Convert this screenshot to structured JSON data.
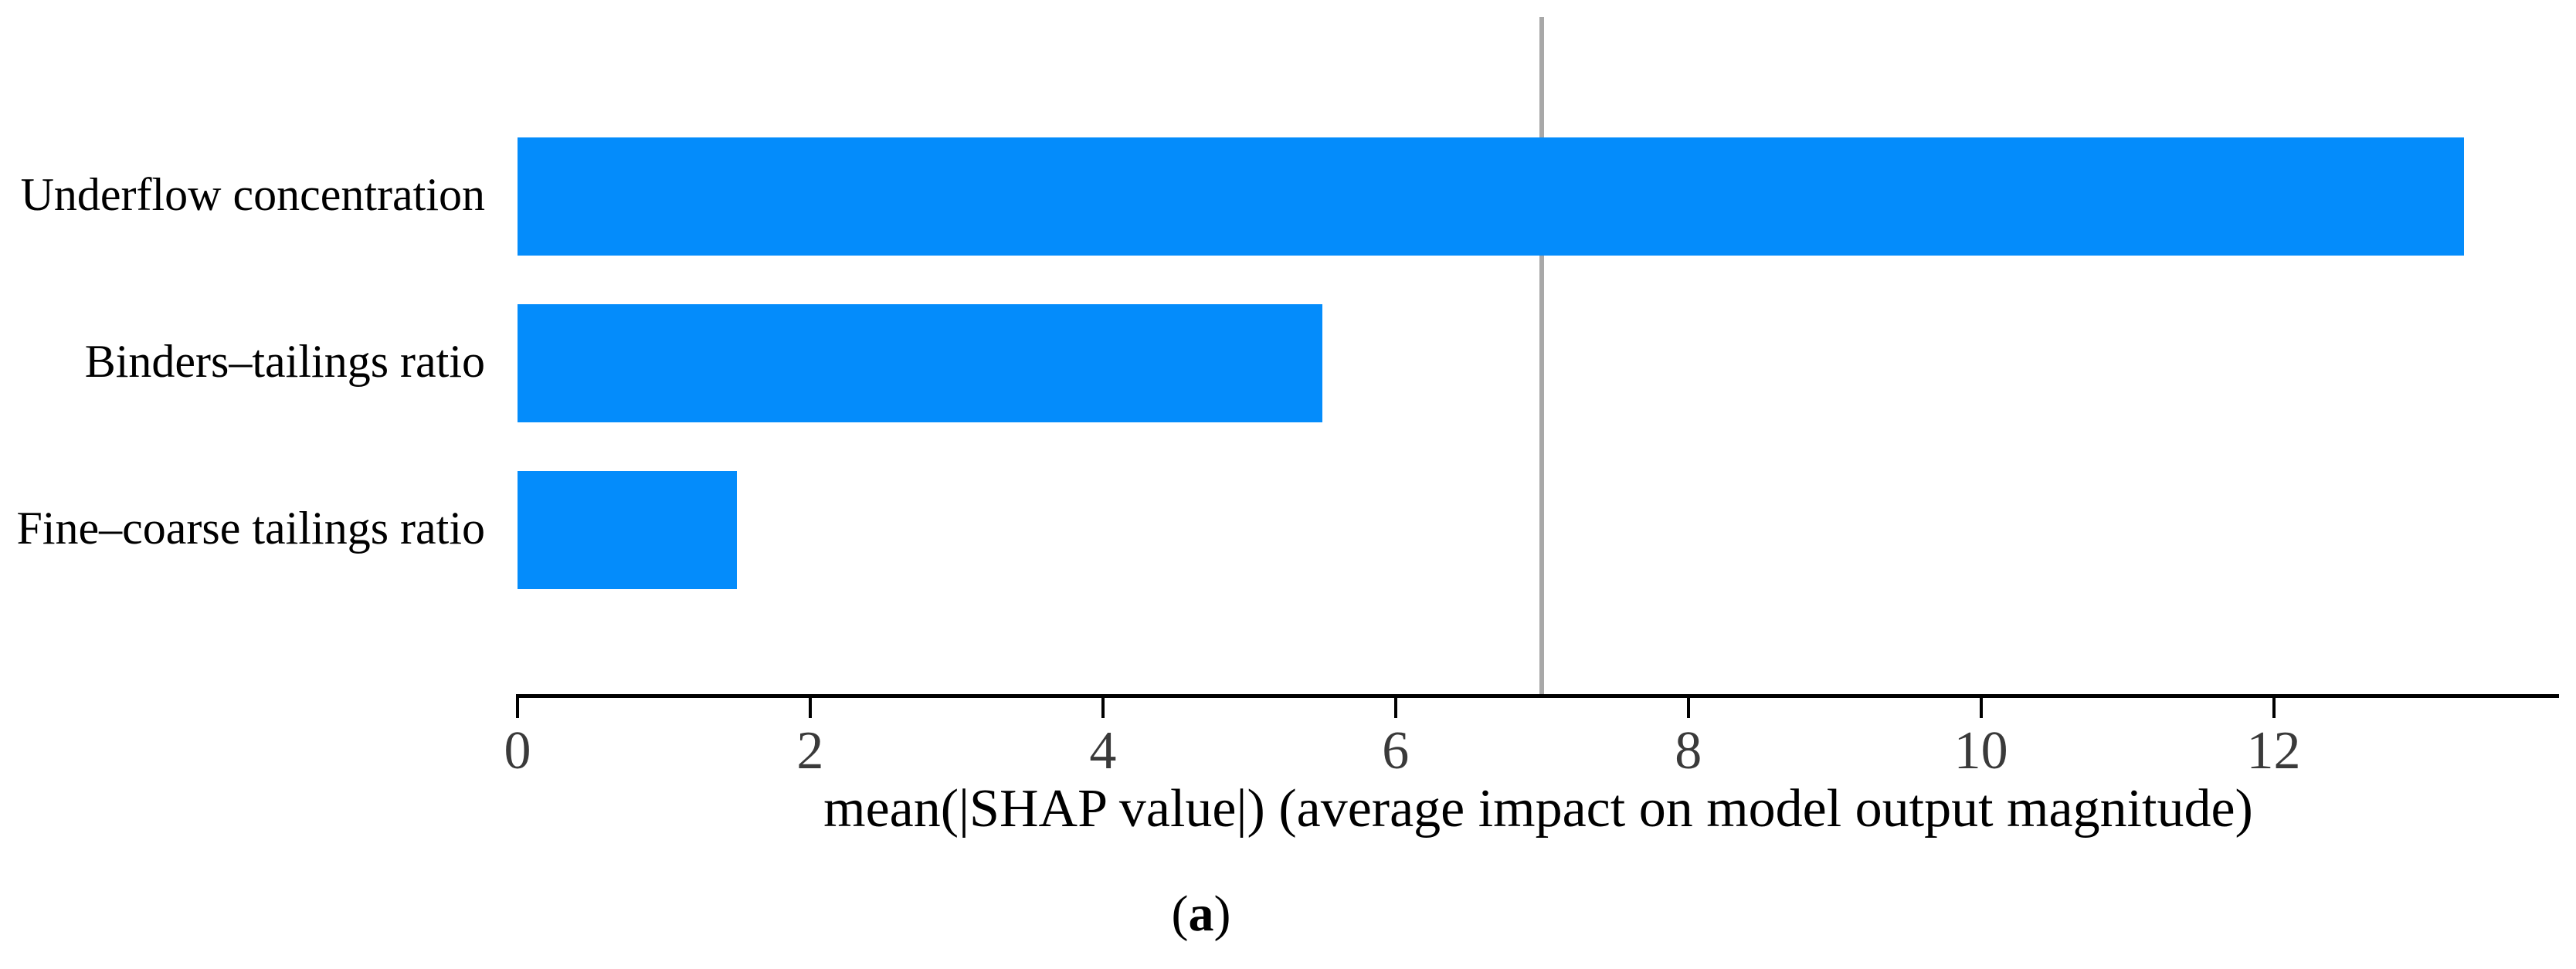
{
  "chart_data": {
    "type": "bar",
    "orientation": "horizontal",
    "title": "",
    "categories": [
      "Underflow concentration",
      "Binders–tailings ratio",
      "Fine–coarse tailings ratio"
    ],
    "values": [
      13.3,
      5.5,
      1.5
    ],
    "xlabel": "mean(|SHAP value|) (average impact on model output magnitude)",
    "ylabel": "",
    "x_ticks": [
      0,
      2,
      4,
      6,
      8,
      10,
      12
    ],
    "xlim": [
      0,
      13.95
    ],
    "reference_line_x": 7.0,
    "grid": false,
    "legend": false,
    "bar_color": "#048cfb",
    "reference_line_color": "#a8a8a8",
    "axis_color": "#000000",
    "tick_label_color": "#3a3a3a"
  },
  "caption": {
    "text": "(a)",
    "open": "(",
    "letter": "a",
    "close": ")"
  }
}
